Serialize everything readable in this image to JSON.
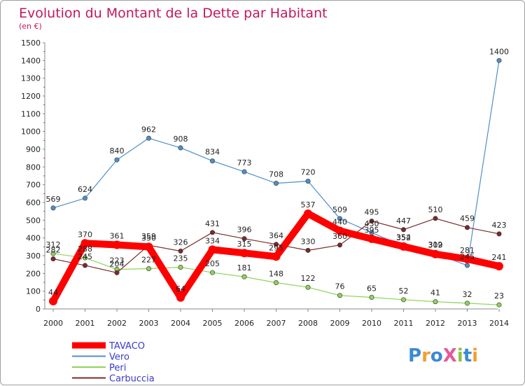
{
  "chart_data": {
    "type": "line",
    "title": "Evolution du Montant de la Dette par Habitant",
    "subtitle": "(en €)",
    "x": [
      "2000",
      "2001",
      "2002",
      "2003",
      "2004",
      "2005",
      "2006",
      "2007",
      "2008",
      "2009",
      "2010",
      "2011",
      "2012",
      "2013",
      "2014"
    ],
    "ylim": [
      0,
      1500
    ],
    "yticks": [
      0,
      100,
      200,
      300,
      400,
      500,
      600,
      700,
      800,
      900,
      1000,
      1100,
      1200,
      1300,
      1400,
      1500
    ],
    "grid": false,
    "legend_position": "bottom-left",
    "series": [
      {
        "name": "TAVACO",
        "color": "#ff0000",
        "values": [
          44,
          370,
          361,
          350,
          64,
          334,
          315,
          295,
          537,
          440,
          395,
          352,
          309,
          281,
          241
        ]
      },
      {
        "name": "Vero",
        "color": "#4f8fc8",
        "values": [
          569,
          624,
          840,
          962,
          908,
          834,
          773,
          708,
          720,
          509,
          430,
          354,
          312,
          245,
          1400
        ]
      },
      {
        "name": "Peri",
        "color": "#8fd35a",
        "values": [
          312,
          288,
          223,
          227,
          235,
          205,
          181,
          148,
          122,
          76,
          65,
          52,
          41,
          32,
          23
        ]
      },
      {
        "name": "Carbuccia",
        "color": "#7a2a2a",
        "values": [
          282,
          245,
          204,
          359,
          326,
          431,
          396,
          364,
          330,
          360,
          495,
          447,
          510,
          459,
          423
        ]
      }
    ]
  },
  "logo": {
    "text": "ProXiti"
  }
}
